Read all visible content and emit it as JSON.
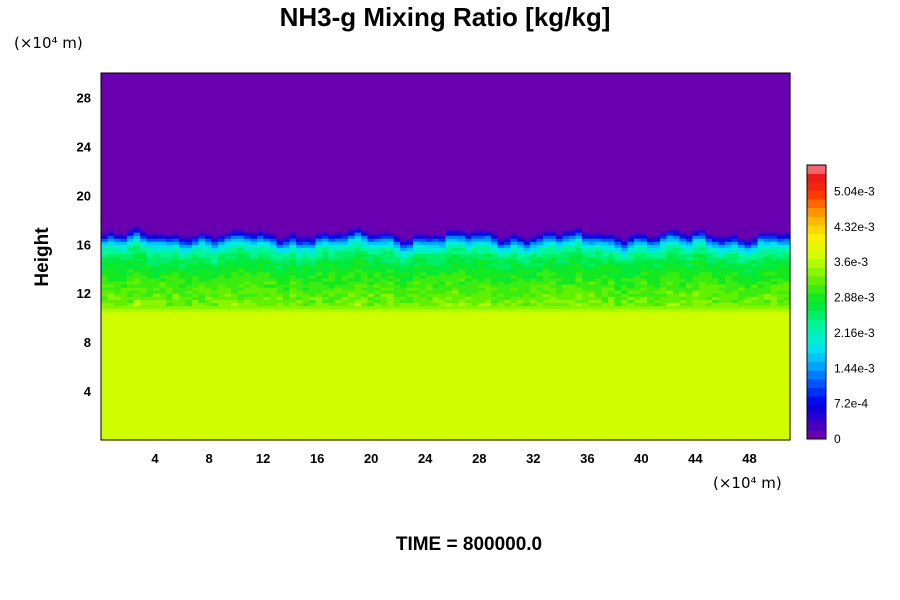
{
  "chart_data": {
    "type": "heatmap",
    "title": "NH3-g Mixing Ratio [kg/kg]",
    "xlabel": "",
    "ylabel": "Height",
    "x_unit": "(×10⁴ m)",
    "y_unit": "(×10⁴ m)",
    "xlim": [
      0,
      51
    ],
    "ylim": [
      0,
      30
    ],
    "xticks": [
      4,
      8,
      12,
      16,
      20,
      24,
      28,
      32,
      36,
      40,
      44,
      48
    ],
    "yticks": [
      4,
      8,
      12,
      16,
      20,
      24,
      28
    ],
    "colorbar": {
      "min": 0,
      "max": 0.00558,
      "levels": 32,
      "tick_values": [
        0,
        0.00072,
        0.00144,
        0.00216,
        0.00288,
        0.0036,
        0.00432,
        0.00504
      ],
      "tick_labels": [
        "0",
        "7.2e-4",
        "1.44e-3",
        "2.16e-3",
        "2.88e-3",
        "3.6e-3",
        "4.32e-3",
        "5.04e-3"
      ]
    },
    "field_profile": [
      {
        "height": 0,
        "value": 0.00372
      },
      {
        "height": 10.5,
        "value": 0.00372
      },
      {
        "height": 11.0,
        "value": 0.0033
      },
      {
        "height": 12.5,
        "value": 0.0031
      },
      {
        "height": 13.5,
        "value": 0.0029
      },
      {
        "height": 14.5,
        "value": 0.0027
      },
      {
        "height": 15.3,
        "value": 0.0024
      },
      {
        "height": 15.9,
        "value": 0.0019
      },
      {
        "height": 16.3,
        "value": 0.0013
      },
      {
        "height": 16.6,
        "value": 0.0007
      },
      {
        "height": 17.0,
        "value": 0.0001
      },
      {
        "height": 30,
        "value": 0.0
      }
    ],
    "grid": false,
    "legend": "none"
  },
  "footer": {
    "time_label": "TIME = 800000.0"
  }
}
